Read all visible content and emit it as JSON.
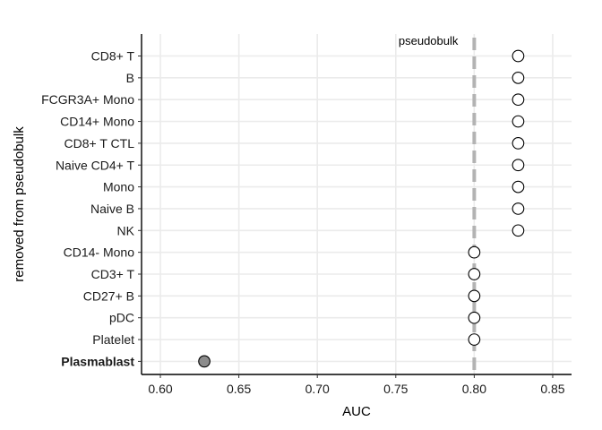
{
  "chart_data": {
    "type": "scatter",
    "xlabel": "AUC",
    "ylabel": "removed from pseudobulk",
    "xlim": [
      0.588,
      0.862
    ],
    "xticks": [
      "0.60",
      "0.65",
      "0.70",
      "0.75",
      "0.80",
      "0.85"
    ],
    "xtick_values": [
      0.6,
      0.65,
      0.7,
      0.75,
      0.8,
      0.85
    ],
    "grid": true,
    "reference_line": {
      "label": "pseudobulk",
      "x": 0.8,
      "style": "dashed",
      "color": "#b3b3b3"
    },
    "categories": [
      "CD8+ T",
      "B",
      "FCGR3A+ Mono",
      "CD14+ Mono",
      "CD8+ T CTL",
      "Naive CD4+ T",
      "Mono",
      "Naive B",
      "NK",
      "CD14- Mono",
      "CD3+ T",
      "CD27+ B",
      "pDC",
      "Platelet",
      "Plasmablast"
    ],
    "values": [
      0.828,
      0.828,
      0.828,
      0.828,
      0.828,
      0.828,
      0.828,
      0.828,
      0.828,
      0.8,
      0.8,
      0.8,
      0.8,
      0.8,
      0.628
    ],
    "highlighted": [
      "Plasmablast"
    ],
    "colors": {
      "point_fill": "#ffffff",
      "highlight_fill": "#8c8c8c",
      "highlight_label": "#8c8c8c",
      "point_stroke": "#000000"
    }
  }
}
